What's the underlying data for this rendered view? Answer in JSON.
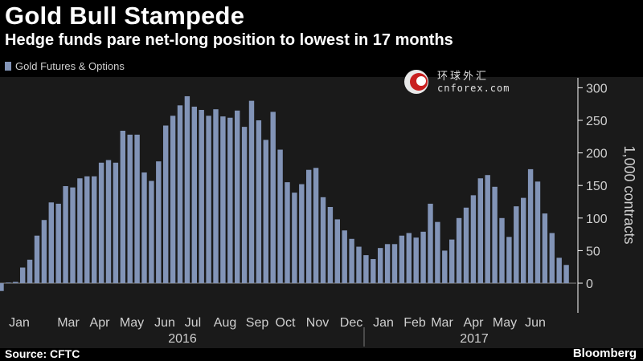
{
  "header": {
    "title": "Gold Bull Stampede",
    "subtitle": "Hedge funds pare net-long position to lowest in 17 months"
  },
  "legend": {
    "label": "Gold Futures & Options",
    "color": "#8294b7"
  },
  "footer": {
    "source": "Source: CFTC",
    "brand": "Bloomberg"
  },
  "watermark": {
    "text_cn": "环球外汇",
    "text_en": "cnforex.com"
  },
  "colors": {
    "background": "#000000",
    "plot_background": "#1a1a1a",
    "bar": "#8294b7",
    "text": "#ffffff",
    "axis_text": "#cfcfcf"
  },
  "chart_data": {
    "type": "bar",
    "title": "Gold Bull Stampede",
    "subtitle": "Hedge funds pare net-long position to lowest in 17 months",
    "ylabel": "1,000 contracts",
    "ylim": [
      -30,
      310
    ],
    "y_ticks": [
      0,
      50,
      100,
      150,
      200,
      250,
      300
    ],
    "y_axis_side": "right",
    "grid": false,
    "legend_position": "top-left",
    "x_ticks": [
      "Jan",
      "Mar",
      "Apr",
      "May",
      "Jun",
      "Jul",
      "Aug",
      "Sep",
      "Oct",
      "Nov",
      "Dec",
      "Jan",
      "Feb",
      "Mar",
      "Apr",
      "May",
      "Jun"
    ],
    "year_labels": [
      "2016",
      "2017"
    ],
    "series": [
      {
        "name": "Gold Futures & Options",
        "values": [
          -12,
          1,
          2,
          24,
          36,
          73,
          97,
          124,
          122,
          149,
          147,
          161,
          164,
          164,
          185,
          189,
          185,
          234,
          228,
          228,
          170,
          157,
          187,
          242,
          257,
          273,
          287,
          271,
          266,
          257,
          267,
          256,
          254,
          265,
          240,
          280,
          250,
          220,
          263,
          205,
          155,
          139,
          152,
          174,
          177,
          132,
          117,
          98,
          81,
          68,
          56,
          43,
          37,
          54,
          60,
          60,
          73,
          77,
          70,
          79,
          122,
          94,
          50,
          67,
          100,
          116,
          135,
          161,
          166,
          148,
          100,
          71,
          118,
          131,
          175,
          156,
          107,
          77,
          39,
          28
        ]
      }
    ]
  }
}
